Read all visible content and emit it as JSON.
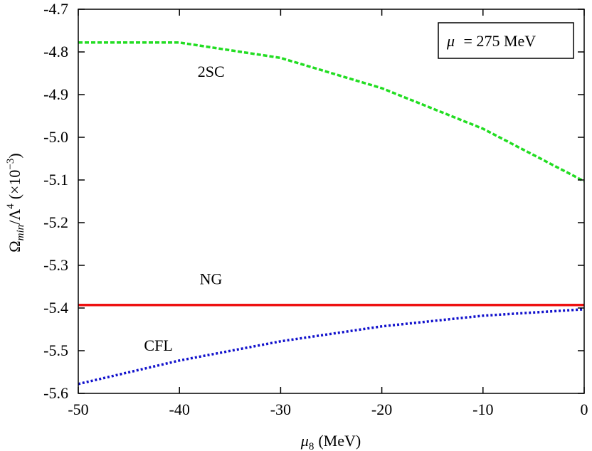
{
  "chart_data": {
    "type": "line",
    "xlabel_symbol": "μ",
    "xlabel_sub": "8",
    "xlabel_unit": "(MeV)",
    "ylabel_omega": "Ω",
    "ylabel_sub": "min",
    "ylabel_lambda": "/Λ",
    "ylabel_lambda_exp": "4",
    "ylabel_scale_open": "(×10",
    "ylabel_scale_exp": "−3",
    "ylabel_scale_close": ")",
    "xlim": [
      -50,
      0
    ],
    "ylim": [
      -5.6,
      -4.7
    ],
    "x_ticks": [
      -50,
      -40,
      -30,
      -20,
      -10,
      0
    ],
    "x_tick_labels": [
      "-50",
      "-40",
      "-30",
      "-20",
      "-10",
      "0"
    ],
    "y_ticks": [
      -4.7,
      -4.8,
      -4.9,
      -5.0,
      -5.1,
      -5.2,
      -5.3,
      -5.4,
      -5.5,
      -5.6
    ],
    "y_tick_labels": [
      "-4.7",
      "-4.8",
      "-4.9",
      "-5.0",
      "-5.1",
      "-5.2",
      "-5.3",
      "-5.4",
      "-5.5",
      "-5.6"
    ],
    "grid": false,
    "legend_box": {
      "position": "top-right",
      "symbol": "μ",
      "text": "= 275 MeV"
    },
    "series": [
      {
        "name": "2SC",
        "color": "#22dd22",
        "style": "dashed",
        "x": [
          -50,
          -40,
          -30,
          -20,
          -10,
          0
        ],
        "y": [
          -4.778,
          -4.778,
          -4.814,
          -4.885,
          -4.98,
          -5.103
        ]
      },
      {
        "name": "NG",
        "color": "#ee1111",
        "style": "solid",
        "x": [
          -50,
          -40,
          -30,
          -20,
          -10,
          0
        ],
        "y": [
          -5.393,
          -5.393,
          -5.393,
          -5.393,
          -5.393,
          -5.393
        ]
      },
      {
        "name": "CFL",
        "color": "#1111cc",
        "style": "dotted",
        "x": [
          -50,
          -40,
          -30,
          -20,
          -10,
          0
        ],
        "y": [
          -5.578,
          -5.523,
          -5.478,
          -5.443,
          -5.418,
          -5.403
        ]
      }
    ],
    "series_labels": [
      {
        "text": "2SC",
        "x": -38.2,
        "y": -4.858
      },
      {
        "text": "NG",
        "x": -38.0,
        "y": -5.344
      },
      {
        "text": "CFL",
        "x": -43.5,
        "y": -5.5
      }
    ]
  }
}
